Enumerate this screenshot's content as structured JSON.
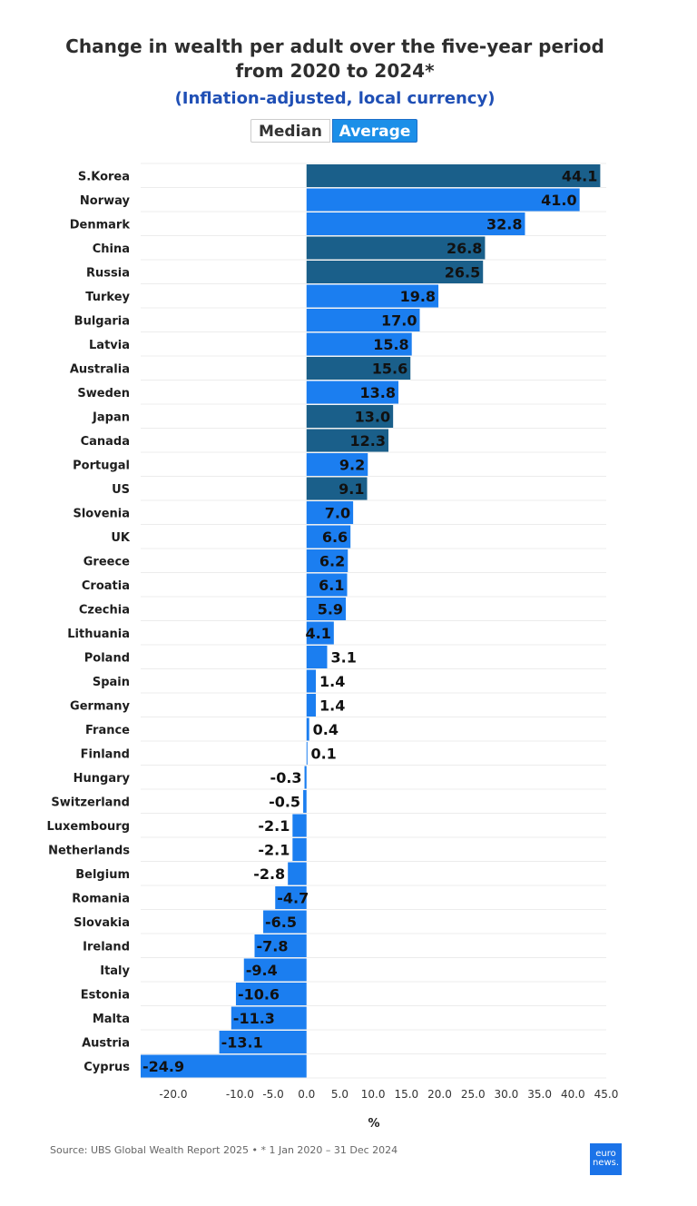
{
  "header": {
    "title_line1": "Change in wealth per adult over the five-year period",
    "title_line2": "from 2020 to 2024*",
    "subtitle": "(Inflation-adjusted, local currency)"
  },
  "toggle": {
    "median_label": "Median",
    "average_label": "Average",
    "selected": "Average"
  },
  "colors": {
    "bar_eu": "#1b7ef0",
    "bar_non_eu": "#1a5f8a",
    "toggle_active": "#1b8fe8",
    "subtitle": "#1f4fb5"
  },
  "chart_data": {
    "type": "bar",
    "orientation": "horizontal",
    "categories": [
      "S.Korea",
      "Norway",
      "Denmark",
      "China",
      "Russia",
      "Turkey",
      "Bulgaria",
      "Latvia",
      "Australia",
      "Sweden",
      "Japan",
      "Canada",
      "Portugal",
      "US",
      "Slovenia",
      "UK",
      "Greece",
      "Croatia",
      "Czechia",
      "Lithuania",
      "Poland",
      "Spain",
      "Germany",
      "France",
      "Finland",
      "Hungary",
      "Switzerland",
      "Luxembourg",
      "Netherlands",
      "Belgium",
      "Romania",
      "Slovakia",
      "Ireland",
      "Italy",
      "Estonia",
      "Malta",
      "Austria",
      "Cyprus"
    ],
    "values": [
      44.1,
      41.0,
      32.8,
      26.8,
      26.5,
      19.8,
      17.0,
      15.8,
      15.6,
      13.8,
      13.0,
      12.3,
      9.2,
      9.1,
      7.0,
      6.6,
      6.2,
      6.1,
      5.9,
      4.1,
      3.1,
      1.4,
      1.4,
      0.4,
      0.1,
      -0.3,
      -0.5,
      -2.1,
      -2.1,
      -2.8,
      -4.7,
      -6.5,
      -7.8,
      -9.4,
      -10.6,
      -11.3,
      -13.1,
      -24.9
    ],
    "labels": [
      "44.1",
      "41.0",
      "32.8",
      "26.8",
      "26.5",
      "19.8",
      "17.0",
      "15.8",
      "15.6",
      "13.8",
      "13.0",
      "12.3",
      "9.2",
      "9.1",
      "7.0",
      "6.6",
      "6.2",
      "6.1",
      "5.9",
      "4.1",
      "3.1",
      "1.4",
      "1.4",
      "0.4",
      "0.1",
      "-0.3",
      "-0.5",
      "-2.1",
      "-2.1",
      "-2.8",
      "-4.7",
      "-6.5",
      "-7.8",
      "-9.4",
      "-10.6",
      "-11.3",
      "-13.1",
      "-24.9"
    ],
    "dark_categories": [
      "S.Korea",
      "China",
      "Russia",
      "Australia",
      "Japan",
      "Canada",
      "US"
    ],
    "xlabel": "%",
    "xlim": [
      -24.9,
      45.0
    ],
    "xticks": [
      -20,
      -10,
      -5,
      0,
      5,
      10,
      15,
      20,
      25,
      30,
      35,
      40,
      45
    ],
    "xtick_labels": [
      "-20.0",
      "-10.0",
      "-5.0",
      "0.0",
      "5.0",
      "10.0",
      "15.0",
      "20.0",
      "25.0",
      "30.0",
      "35.0",
      "40.0",
      "45.0"
    ],
    "grid": true
  },
  "footer": {
    "source": "Source: UBS Global Wealth Report 2025 • * 1 Jan 2020 – 31 Dec 2024",
    "logo_line1": "euro",
    "logo_line2": "news."
  }
}
